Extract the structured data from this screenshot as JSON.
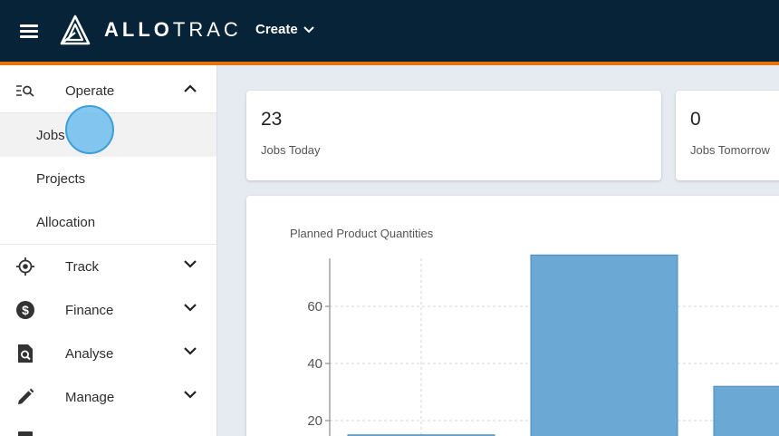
{
  "header": {
    "logo_bold": "ALLO",
    "logo_rest": "TRAC",
    "create_label": "Create",
    "brand_color": "#062338",
    "accent_color": "#e8720c"
  },
  "sidebar": {
    "operate": {
      "label": "Operate",
      "icon": "search-list-icon",
      "expanded": true,
      "items": [
        {
          "label": "Jobs",
          "active": true
        },
        {
          "label": "Projects"
        },
        {
          "label": "Allocation"
        }
      ]
    },
    "sections": [
      {
        "label": "Track",
        "icon": "target-icon"
      },
      {
        "label": "Finance",
        "icon": "dollar-circle-icon"
      },
      {
        "label": "Analyse",
        "icon": "analyse-icon"
      },
      {
        "label": "Manage",
        "icon": "pencil-icon"
      }
    ]
  },
  "stats": [
    {
      "value": "23",
      "label": "Jobs Today"
    },
    {
      "value": "0",
      "label": "Jobs Tomorrow"
    }
  ],
  "chart_data": {
    "type": "bar",
    "title": "Planned Product Quantities",
    "xlabel": "",
    "ylabel": "",
    "ytick_labels": [
      "20",
      "40",
      "60"
    ],
    "yticks": [
      20,
      40,
      60
    ],
    "ylim_visible": [
      15,
      78
    ],
    "values": [
      15,
      78,
      32
    ],
    "bar_color": "#6ba8d4",
    "grid": true
  }
}
